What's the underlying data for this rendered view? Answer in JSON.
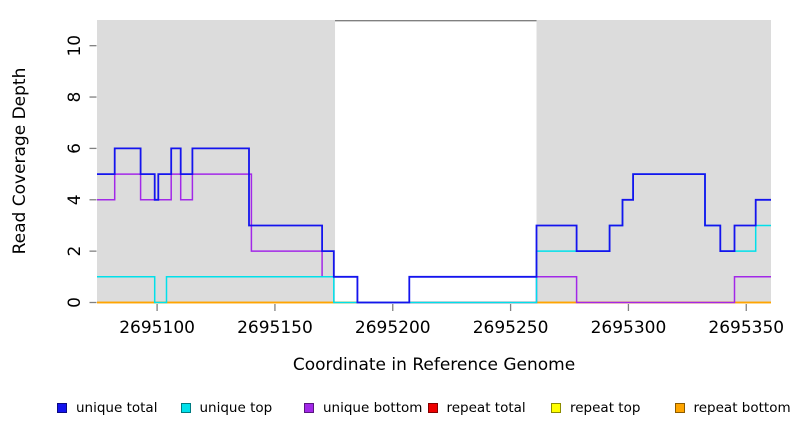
{
  "chart_data": {
    "type": "line",
    "subtype": "step-post",
    "title": "",
    "xlabel": "Coordinate in Reference Genome",
    "ylabel": "Read Coverage Depth",
    "xlim": [
      2695074.5,
      2695360.5
    ],
    "ylim": [
      0,
      11
    ],
    "x_ticks": [
      2695100,
      2695150,
      2695200,
      2695250,
      2695300,
      2695350
    ],
    "y_ticks": [
      0,
      2,
      4,
      6,
      8,
      10
    ],
    "grid": "off",
    "legend_position": "bottom",
    "plot_bg": "#ffffff",
    "tick_color": "#808080",
    "shaded_regions": [
      {
        "x0": 2695074.5,
        "x1": 2695175.5,
        "color": "#dcdcdc",
        "meaning": "repeat region"
      },
      {
        "x0": 2695261.0,
        "x1": 2695360.5,
        "color": "#dcdcdc",
        "meaning": "repeat region"
      }
    ],
    "gap_top_border": {
      "x0": 2695175.5,
      "x1": 2695261.0,
      "color": "#808080"
    },
    "draw_order": [
      "repeat total",
      "repeat top",
      "repeat bottom",
      "unique bottom",
      "unique top",
      "unique total"
    ],
    "series": [
      {
        "name": "unique total",
        "color": "#1414ee",
        "line_width": 1.8,
        "x_end": 2695360.5,
        "steps": [
          [
            2695074.5,
            5
          ],
          [
            2695082,
            6
          ],
          [
            2695093,
            5
          ],
          [
            2695099,
            4
          ],
          [
            2695100.5,
            5
          ],
          [
            2695106,
            6
          ],
          [
            2695110,
            5
          ],
          [
            2695115,
            6
          ],
          [
            2695139,
            3
          ],
          [
            2695170,
            2
          ],
          [
            2695175,
            1
          ],
          [
            2695185,
            0
          ],
          [
            2695207,
            1
          ],
          [
            2695261,
            3
          ],
          [
            2695278,
            2
          ],
          [
            2695292,
            3
          ],
          [
            2695297.5,
            4
          ],
          [
            2695302,
            5
          ],
          [
            2695332.5,
            3
          ],
          [
            2695339,
            2
          ],
          [
            2695345,
            3
          ],
          [
            2695354,
            4
          ]
        ]
      },
      {
        "name": "unique top",
        "color": "#00e0ea",
        "line_width": 1.5,
        "x_end": 2695360.5,
        "steps": [
          [
            2695074.5,
            1
          ],
          [
            2695099,
            0
          ],
          [
            2695104,
            1
          ],
          [
            2695175,
            0
          ],
          [
            2695261,
            2
          ],
          [
            2695292,
            3
          ],
          [
            2695297.5,
            4
          ],
          [
            2695302,
            5
          ],
          [
            2695332.5,
            3
          ],
          [
            2695339,
            2
          ],
          [
            2695354,
            3
          ]
        ]
      },
      {
        "name": "unique bottom",
        "color": "#a228e8",
        "line_width": 1.5,
        "x_end": 2695360.5,
        "steps": [
          [
            2695074.5,
            4
          ],
          [
            2695082,
            5
          ],
          [
            2695093,
            4
          ],
          [
            2695106,
            5
          ],
          [
            2695110,
            4
          ],
          [
            2695115,
            5
          ],
          [
            2695140,
            2
          ],
          [
            2695170,
            1
          ],
          [
            2695185,
            0
          ],
          [
            2695261,
            1
          ],
          [
            2695278,
            0
          ],
          [
            2695345,
            1
          ]
        ]
      },
      {
        "name": "repeat total",
        "color": "#ee0000",
        "line_width": 1.3,
        "x_end": 2695360.5,
        "steps": [
          [
            2695074.5,
            0
          ]
        ]
      },
      {
        "name": "repeat top",
        "color": "#ffff00",
        "line_width": 1.3,
        "x_end": 2695360.5,
        "steps": [
          [
            2695074.5,
            0
          ]
        ]
      },
      {
        "name": "repeat bottom",
        "color": "#ffa500",
        "line_width": 1.8,
        "x_end": 2695360.5,
        "steps": [
          [
            2695074.5,
            0
          ]
        ]
      }
    ]
  }
}
